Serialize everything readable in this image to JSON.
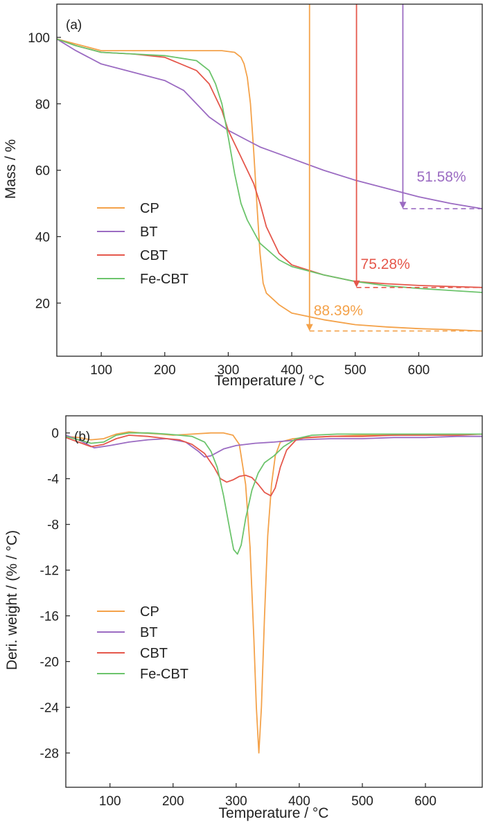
{
  "colors": {
    "CP": "#f4a24a",
    "BT": "#9b6bc2",
    "CBT": "#e5574b",
    "Fe-CBT": "#6cc46c"
  },
  "chart_data": [
    {
      "type": "line",
      "panel_label": "(a)",
      "xlabel": "Temperature / °C",
      "ylabel": "Mass / %",
      "xlim": [
        30,
        700
      ],
      "ylim": [
        4,
        110
      ],
      "xticks": [
        100,
        200,
        300,
        400,
        500,
        600
      ],
      "yticks": [
        20,
        40,
        60,
        80,
        100
      ],
      "grid": false,
      "legend_position": "lower-left",
      "series": [
        {
          "name": "CP",
          "color_key": "CP",
          "x": [
            30,
            60,
            100,
            150,
            200,
            250,
            290,
            310,
            320,
            325,
            330,
            335,
            340,
            345,
            350,
            355,
            360,
            380,
            400,
            450,
            500,
            550,
            600,
            650,
            700
          ],
          "y": [
            99.5,
            98,
            96,
            96,
            96,
            96,
            96,
            95.5,
            94,
            92,
            88,
            80,
            66,
            50,
            35,
            26,
            23,
            19.5,
            17,
            15,
            13.5,
            12.8,
            12.3,
            12,
            11.6
          ]
        },
        {
          "name": "BT",
          "color_key": "BT",
          "x": [
            30,
            60,
            100,
            150,
            200,
            230,
            250,
            270,
            300,
            330,
            350,
            400,
            450,
            500,
            550,
            600,
            650,
            700
          ],
          "y": [
            99.5,
            96,
            92,
            89.5,
            87,
            84,
            80,
            76,
            72,
            69,
            67,
            63.5,
            60,
            57,
            54.5,
            52,
            50,
            48.4
          ]
        },
        {
          "name": "CBT",
          "color_key": "CBT",
          "x": [
            30,
            60,
            100,
            150,
            200,
            250,
            270,
            290,
            300,
            320,
            340,
            350,
            360,
            380,
            400,
            450,
            500,
            550,
            600,
            650,
            700
          ],
          "y": [
            99.5,
            97.5,
            95.5,
            95,
            94,
            90,
            86,
            78,
            72,
            64,
            56,
            50,
            43,
            35,
            31.5,
            28.5,
            26.5,
            25.8,
            25.3,
            25,
            24.7
          ]
        },
        {
          "name": "Fe-CBT",
          "color_key": "Fe-CBT",
          "x": [
            30,
            60,
            100,
            150,
            200,
            250,
            270,
            280,
            290,
            300,
            310,
            320,
            330,
            350,
            380,
            400,
            450,
            500,
            550,
            600,
            650,
            700
          ],
          "y": [
            99.5,
            97.5,
            95.5,
            95,
            94.5,
            93,
            90,
            86,
            80,
            70,
            59,
            50,
            45,
            38,
            33,
            31,
            28.5,
            26.5,
            25.2,
            24.4,
            23.8,
            23.2
          ]
        }
      ],
      "annotations": [
        {
          "text": "51.58%",
          "color_key": "BT",
          "arrow_x": 575,
          "arrow_to_y": 48.4
        },
        {
          "text": "75.28%",
          "color_key": "CBT",
          "arrow_x": 502,
          "arrow_to_y": 24.7
        },
        {
          "text": "88.39%",
          "color_key": "CP",
          "arrow_x": 428,
          "arrow_to_y": 11.6
        }
      ]
    },
    {
      "type": "line",
      "panel_label": "(b)",
      "xlabel": "Temperature / °C",
      "ylabel": "Deri. weight / (% / °C)",
      "xlim": [
        30,
        690
      ],
      "ylim": [
        -31,
        1.5
      ],
      "xticks": [
        100,
        200,
        300,
        400,
        500,
        600
      ],
      "yticks": [
        0,
        -4,
        -8,
        -12,
        -16,
        -20,
        -24,
        -28
      ],
      "grid": false,
      "legend_position": "lower-left",
      "series": [
        {
          "name": "CP",
          "color_key": "CP",
          "x": [
            30,
            50,
            70,
            90,
            110,
            130,
            150,
            180,
            200,
            230,
            260,
            280,
            295,
            305,
            315,
            322,
            328,
            332,
            336,
            340,
            345,
            350,
            356,
            362,
            370,
            390,
            420,
            450,
            500,
            550,
            600,
            650,
            690
          ],
          "y": [
            -0.3,
            -0.4,
            -0.6,
            -0.5,
            -0.1,
            0.1,
            0.0,
            -0.1,
            -0.2,
            -0.1,
            0.0,
            0.0,
            -0.2,
            -1.0,
            -4.5,
            -10,
            -18,
            -24,
            -28,
            -24,
            -16,
            -9,
            -4.5,
            -2.0,
            -0.8,
            -0.5,
            -0.4,
            -0.3,
            -0.2,
            -0.2,
            -0.1,
            -0.1,
            -0.1
          ]
        },
        {
          "name": "BT",
          "color_key": "BT",
          "x": [
            30,
            50,
            75,
            100,
            130,
            160,
            190,
            220,
            240,
            250,
            260,
            270,
            280,
            300,
            330,
            360,
            400,
            450,
            500,
            550,
            600,
            650,
            690
          ],
          "y": [
            -0.2,
            -0.6,
            -1.3,
            -1.1,
            -0.8,
            -0.6,
            -0.5,
            -0.8,
            -1.6,
            -2.1,
            -2.0,
            -1.7,
            -1.4,
            -1.1,
            -0.9,
            -0.8,
            -0.6,
            -0.5,
            -0.5,
            -0.4,
            -0.4,
            -0.3,
            -0.3
          ]
        },
        {
          "name": "CBT",
          "color_key": "CBT",
          "x": [
            30,
            50,
            70,
            90,
            110,
            130,
            160,
            190,
            210,
            230,
            250,
            265,
            275,
            285,
            295,
            305,
            315,
            325,
            335,
            345,
            355,
            362,
            370,
            380,
            395,
            410,
            450,
            500,
            550,
            600,
            650,
            690
          ],
          "y": [
            -0.4,
            -0.8,
            -1.2,
            -1.0,
            -0.5,
            -0.2,
            -0.3,
            -0.5,
            -0.6,
            -1.0,
            -1.8,
            -3.0,
            -4.0,
            -4.3,
            -4.1,
            -3.8,
            -3.7,
            -3.9,
            -4.5,
            -5.2,
            -5.5,
            -4.8,
            -3.0,
            -1.5,
            -0.6,
            -0.4,
            -0.3,
            -0.3,
            -0.2,
            -0.2,
            -0.2,
            -0.1
          ]
        },
        {
          "name": "Fe-CBT",
          "color_key": "Fe-CBT",
          "x": [
            30,
            50,
            70,
            90,
            110,
            130,
            160,
            190,
            210,
            230,
            250,
            260,
            270,
            280,
            290,
            296,
            302,
            308,
            315,
            325,
            335,
            345,
            360,
            375,
            395,
            420,
            460,
            500,
            550,
            600,
            650,
            690
          ],
          "y": [
            -0.3,
            -0.6,
            -0.9,
            -0.8,
            -0.2,
            0.0,
            0.0,
            -0.1,
            -0.2,
            -0.3,
            -0.8,
            -1.6,
            -3.0,
            -5.5,
            -8.5,
            -10.2,
            -10.6,
            -9.8,
            -7.5,
            -5.0,
            -3.5,
            -2.6,
            -2.0,
            -1.2,
            -0.5,
            -0.2,
            -0.1,
            -0.1,
            -0.1,
            -0.1,
            -0.1,
            -0.1
          ]
        }
      ]
    }
  ]
}
